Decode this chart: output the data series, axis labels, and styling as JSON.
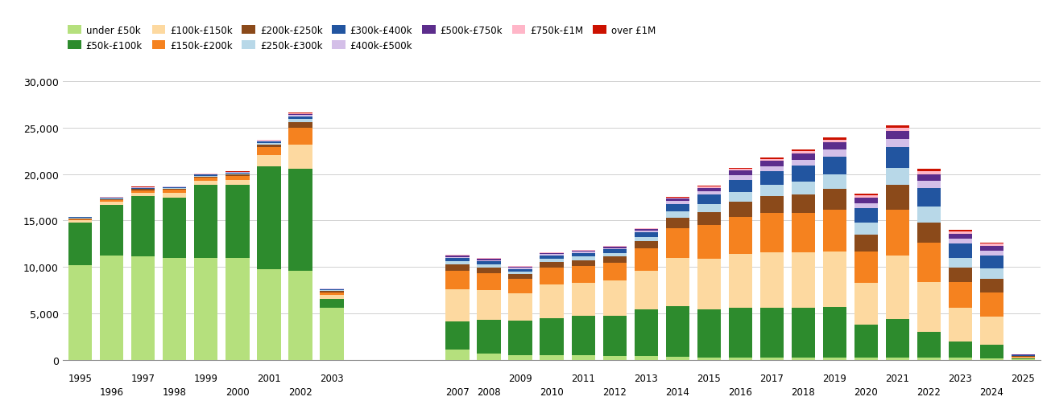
{
  "years": [
    1995,
    1996,
    1997,
    1998,
    1999,
    2000,
    2001,
    2002,
    2003,
    2007,
    2008,
    2009,
    2010,
    2011,
    2012,
    2013,
    2014,
    2015,
    2016,
    2017,
    2018,
    2019,
    2020,
    2021,
    2022,
    2023,
    2024,
    2025
  ],
  "categories": [
    "under £50k",
    "£50k-£100k",
    "£100k-£150k",
    "£150k-£200k",
    "£200k-£250k",
    "£250k-£300k",
    "£300k-£400k",
    "£400k-£500k",
    "£500k-£750k",
    "£750k-£1M",
    "over £1M"
  ],
  "colors": [
    "#b5e07d",
    "#2d8b2d",
    "#fdd9a0",
    "#f5821f",
    "#8b4a1a",
    "#b8d8e8",
    "#2255a0",
    "#d4bfe8",
    "#5c2d8c",
    "#ffb6c8",
    "#cc1100"
  ],
  "data": {
    "under £50k": [
      10200,
      11200,
      11100,
      11000,
      11000,
      11000,
      9800,
      9600,
      5600,
      1100,
      700,
      500,
      500,
      500,
      450,
      400,
      300,
      200,
      200,
      200,
      200,
      200,
      200,
      200,
      200,
      200,
      150,
      50
    ],
    "£50k-£100k": [
      4600,
      5500,
      6500,
      6500,
      7800,
      7800,
      11000,
      11000,
      1000,
      3000,
      3600,
      3700,
      4000,
      4200,
      4300,
      5000,
      5500,
      5200,
      5400,
      5400,
      5400,
      5500,
      3600,
      4200,
      2800,
      1800,
      1500,
      100
    ],
    "£100k-£150k": [
      200,
      300,
      400,
      500,
      500,
      600,
      1200,
      2600,
      350,
      3500,
      3200,
      3000,
      3600,
      3600,
      3800,
      4200,
      5200,
      5500,
      5800,
      6000,
      6000,
      6000,
      4500,
      6800,
      5400,
      3600,
      3000,
      100
    ],
    "£150k-£200k": [
      150,
      200,
      250,
      300,
      300,
      400,
      900,
      1800,
      300,
      2000,
      1800,
      1500,
      1800,
      1800,
      1900,
      2400,
      3200,
      3600,
      4000,
      4200,
      4200,
      4500,
      3400,
      5000,
      4200,
      2800,
      2600,
      100
    ],
    "£200k-£250k": [
      80,
      100,
      120,
      130,
      140,
      160,
      280,
      580,
      150,
      650,
      600,
      500,
      600,
      650,
      650,
      800,
      1100,
      1400,
      1600,
      1800,
      2000,
      2200,
      1800,
      2600,
      2200,
      1500,
      1500,
      60
    ],
    "£250k-£300k": [
      60,
      70,
      80,
      90,
      90,
      100,
      160,
      320,
      100,
      350,
      350,
      300,
      360,
      360,
      380,
      450,
      700,
      900,
      1100,
      1200,
      1400,
      1600,
      1300,
      1900,
      1700,
      1100,
      1100,
      45
    ],
    "£300k-£400k": [
      60,
      70,
      80,
      90,
      95,
      100,
      160,
      320,
      100,
      360,
      360,
      300,
      380,
      380,
      400,
      480,
      800,
      1000,
      1300,
      1500,
      1700,
      1900,
      1500,
      2200,
      2000,
      1500,
      1400,
      55
    ],
    "£400k-£500k": [
      25,
      30,
      35,
      35,
      38,
      40,
      65,
      130,
      40,
      130,
      130,
      110,
      130,
      130,
      145,
      170,
      280,
      360,
      480,
      550,
      650,
      750,
      580,
      850,
      750,
      550,
      520,
      22
    ],
    "£500k-£750k": [
      25,
      30,
      35,
      35,
      38,
      40,
      65,
      130,
      40,
      130,
      130,
      110,
      130,
      130,
      145,
      170,
      280,
      360,
      480,
      550,
      650,
      750,
      580,
      850,
      750,
      550,
      520,
      22
    ],
    "£750k-£1M": [
      12,
      14,
      16,
      16,
      18,
      20,
      32,
      65,
      20,
      65,
      62,
      52,
      65,
      65,
      70,
      80,
      115,
      150,
      200,
      220,
      260,
      310,
      240,
      370,
      320,
      240,
      220,
      10
    ],
    "over £1M": [
      8,
      10,
      12,
      12,
      13,
      14,
      22,
      45,
      14,
      45,
      42,
      36,
      45,
      45,
      50,
      58,
      78,
      100,
      130,
      150,
      175,
      210,
      160,
      250,
      210,
      160,
      145,
      5
    ]
  },
  "ylim": [
    0,
    30000
  ],
  "yticks": [
    0,
    5000,
    10000,
    15000,
    20000,
    25000,
    30000
  ],
  "ytick_labels": [
    "0",
    "5,000",
    "10,000",
    "15,000",
    "20,000",
    "25,000",
    "30,000"
  ],
  "background_color": "#ffffff",
  "grid_color": "#d0d0d0"
}
